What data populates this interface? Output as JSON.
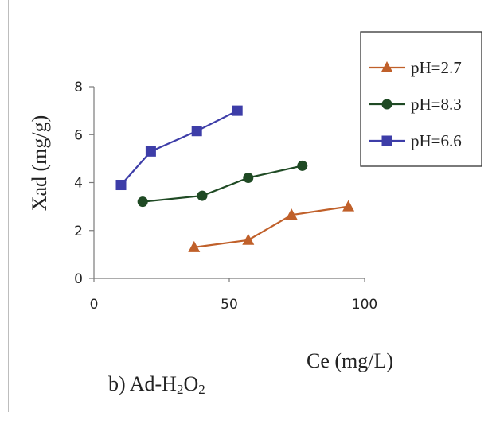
{
  "chart_data": {
    "type": "line",
    "xlabel": "Ce (mg/L)",
    "ylabel": "Xad (mg/g)",
    "xlim": [
      0,
      100
    ],
    "ylim": [
      0,
      8
    ],
    "xticks": [
      0,
      50,
      100
    ],
    "yticks": [
      0,
      2,
      4,
      6,
      8
    ],
    "grid": false,
    "legend_position": "top-right",
    "series": [
      {
        "name": "pH=2.7",
        "color": "#c0602a",
        "marker": "triangle",
        "x": [
          37,
          57,
          73,
          94
        ],
        "y": [
          1.3,
          1.6,
          2.65,
          3.0
        ]
      },
      {
        "name": "pH=8.3",
        "color": "#1f4a24",
        "marker": "circle",
        "x": [
          18,
          40,
          57,
          77
        ],
        "y": [
          3.2,
          3.45,
          4.2,
          4.7
        ]
      },
      {
        "name": "pH=6.6",
        "color": "#3d3da8",
        "marker": "square",
        "x": [
          10,
          21,
          38,
          53
        ],
        "y": [
          3.9,
          5.3,
          6.15,
          7.0
        ]
      }
    ]
  },
  "caption": {
    "prefix": "b) Ad-H",
    "sub1": "2",
    "mid": "O",
    "sub2": "2"
  }
}
